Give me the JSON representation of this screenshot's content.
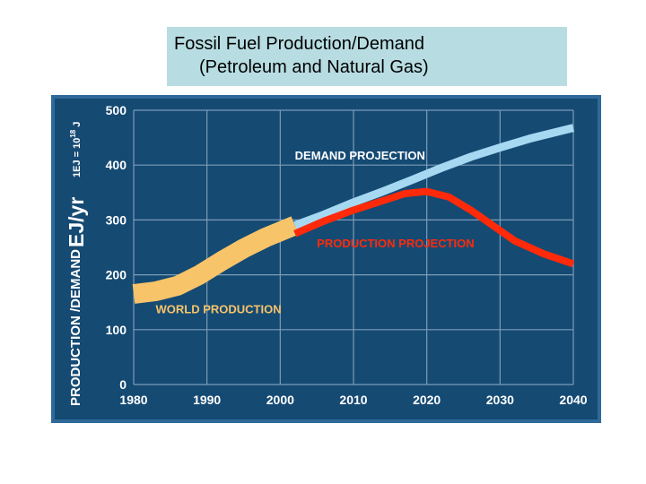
{
  "title": {
    "line1": "Fossil Fuel Production/Demand",
    "line2": "(Petroleum and Natural Gas)"
  },
  "colors": {
    "background": "#154a73",
    "border": "#2f6a9a",
    "grid": "#7d9cb8",
    "world_production": "#f7c469",
    "demand_projection": "#a6d8f2",
    "production_projection": "#ff2a0a"
  },
  "chart_data": {
    "type": "line",
    "ylabel_main": "PRODUCTION /DEMAND",
    "ylabel_unit": "EJ/yr",
    "ylabel_note": "1EJ = 10",
    "ylabel_note_exp": "18",
    "ylabel_note_unit": "J",
    "xlim": [
      1980,
      2040
    ],
    "ylim": [
      0,
      500
    ],
    "x_ticks": [
      1980,
      1990,
      2000,
      2010,
      2020,
      2030,
      2040
    ],
    "y_ticks": [
      0,
      100,
      200,
      300,
      400,
      500
    ],
    "grid": true,
    "series": [
      {
        "name": "WORLD PRODUCTION",
        "color": "#f7c469",
        "x": [
          1980,
          1983,
          1986,
          1989,
          1992,
          1995,
          1998,
          2002
        ],
        "y": [
          165,
          170,
          180,
          200,
          225,
          248,
          268,
          290
        ]
      },
      {
        "name": "DEMAND PROJECTION",
        "color": "#a6d8f2",
        "x": [
          2002,
          2006,
          2010,
          2014,
          2018,
          2022,
          2026,
          2030,
          2034,
          2040
        ],
        "y": [
          290,
          310,
          332,
          352,
          373,
          395,
          415,
          432,
          448,
          468
        ]
      },
      {
        "name": "PRODUCTION PROJECTION",
        "color": "#ff2a0a",
        "x": [
          2002,
          2006,
          2010,
          2014,
          2017,
          2020,
          2023,
          2026,
          2029,
          2032,
          2036,
          2040
        ],
        "y": [
          275,
          298,
          318,
          335,
          348,
          352,
          342,
          318,
          290,
          262,
          238,
          220
        ]
      }
    ]
  }
}
